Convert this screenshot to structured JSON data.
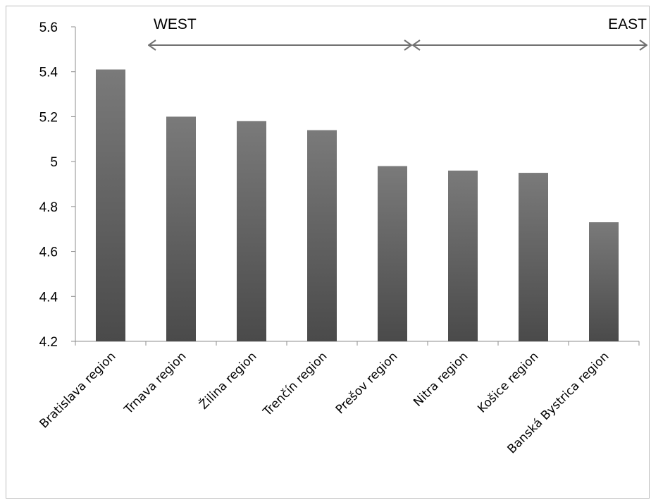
{
  "chart_data": {
    "type": "bar",
    "title": "",
    "xlabel": "",
    "ylabel": "",
    "categories": [
      "Bratislava region",
      "Trnava region",
      "Žilina region",
      "Trenčín region",
      "Prešov region",
      "Nitra region",
      "Košice region",
      "Banská Bystrica region"
    ],
    "values": [
      5.41,
      5.2,
      5.18,
      5.14,
      4.98,
      4.96,
      4.95,
      4.73
    ],
    "ylim": [
      4.2,
      5.6
    ],
    "yticks": [
      "4.2",
      "4.4",
      "4.6",
      "4.8",
      "5",
      "5.2",
      "5.4",
      "5.6"
    ],
    "ytick_values": [
      4.2,
      4.4,
      4.6,
      4.8,
      5.0,
      5.2,
      5.4,
      5.6
    ],
    "grid": false,
    "legend": "none",
    "bar_color_top": "#7a7a7a",
    "bar_color_bottom": "#4a4a4a",
    "annotations": [
      {
        "text": "WEST",
        "from_category": "Trnava region",
        "to_category": "Prešov region"
      },
      {
        "text": "EAST",
        "from_category": "Prešov region",
        "to_category": "Banská Bystrica region"
      }
    ]
  }
}
